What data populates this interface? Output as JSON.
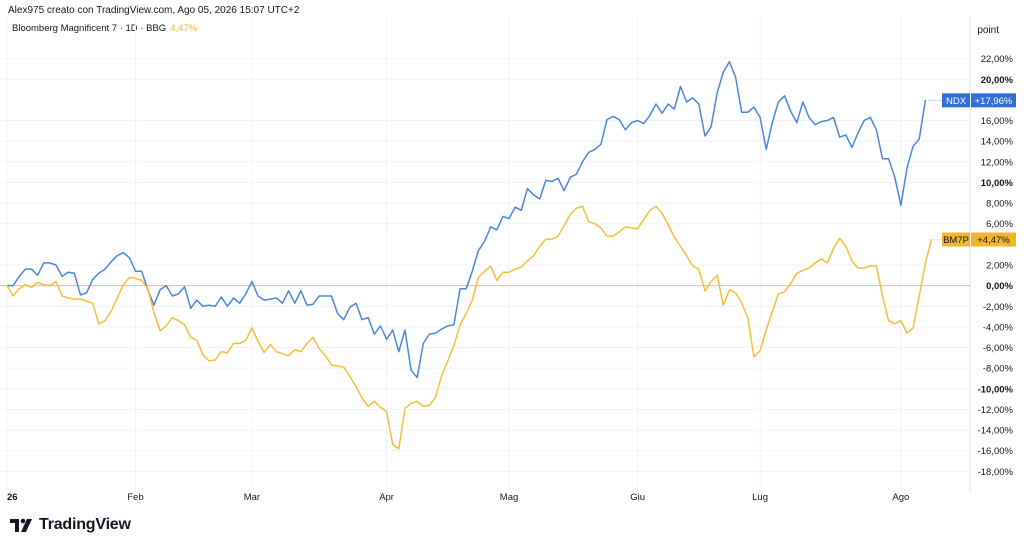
{
  "header": {
    "caption": "Alex975 creato con TradingView.com, Ago 05, 2026 15:07 UTC+2",
    "symbol": "Bloomberg Magnificent 7 · 1D · BBG",
    "change": "4,47%"
  },
  "brand": {
    "name": "TradingView",
    "icon": "tradingview-logo-icon"
  },
  "colors": {
    "ndx": "#4a87d9",
    "bm7p": "#f6bf3a",
    "badge_ndx": "#2f6fd6",
    "badge_bm7p": "#f2b62c",
    "zero_line": "#e8b7b7",
    "grid": "#f0f3fa"
  },
  "chart_data": {
    "type": "line",
    "unit": "point",
    "ylim": [
      -20,
      24
    ],
    "y_ticks": [
      {
        "value": 22,
        "label": "22,00%"
      },
      {
        "value": 20,
        "label": "20,00%"
      },
      {
        "value": 16,
        "label": "16,00%"
      },
      {
        "value": 14,
        "label": "14,00%"
      },
      {
        "value": 12,
        "label": "12,00%"
      },
      {
        "value": 10,
        "label": "10,00%"
      },
      {
        "value": 8,
        "label": "8,00%"
      },
      {
        "value": 6,
        "label": "6,00%"
      },
      {
        "value": 2,
        "label": "2,00%"
      },
      {
        "value": 0,
        "label": "0,00%"
      },
      {
        "value": -2,
        "label": "-2,00%"
      },
      {
        "value": -4,
        "label": "-4,00%"
      },
      {
        "value": -6,
        "label": "-6,00%"
      },
      {
        "value": -8,
        "label": "-8,00%"
      },
      {
        "value": -10,
        "label": "-10,00%"
      },
      {
        "value": -12,
        "label": "-12,00%"
      },
      {
        "value": -14,
        "label": "-14,00%"
      },
      {
        "value": -16,
        "label": "-16,00%"
      },
      {
        "value": -18,
        "label": "-18,00%"
      }
    ],
    "x_ticks": [
      {
        "index": 0,
        "label": "26"
      },
      {
        "index": 21,
        "label": "Feb"
      },
      {
        "index": 40,
        "label": "Mar"
      },
      {
        "index": 62,
        "label": "Apr"
      },
      {
        "index": 82,
        "label": "Mag"
      },
      {
        "index": 103,
        "label": "Giu"
      },
      {
        "index": 123,
        "label": "Lug"
      },
      {
        "index": 146,
        "label": "Ago"
      }
    ],
    "x_count": 148,
    "series": [
      {
        "name": "NDX",
        "badge": "+17,96%",
        "values": [
          0,
          0,
          0.9,
          1.6,
          1.6,
          1,
          2.2,
          2.2,
          2,
          0.9,
          1.3,
          1.2,
          -0.9,
          -0.7,
          0.6,
          1.2,
          1.6,
          2.3,
          2.9,
          3.2,
          2.7,
          1.4,
          1.4,
          -0.4,
          -1.9,
          -0.4,
          0,
          -1,
          -0.8,
          -0.1,
          -2.2,
          -1.4,
          -2,
          -1.9,
          -2,
          -1.1,
          -2,
          -1.2,
          -1.7,
          -0.8,
          0.4,
          -1,
          -1.4,
          -1.3,
          -1.2,
          -1.7,
          -0.5,
          -1.7,
          -0.5,
          -1.9,
          -1.8,
          -1,
          -1,
          -1,
          -2.7,
          -3.3,
          -2.1,
          -1.7,
          -3.3,
          -3.1,
          -4.7,
          -3.9,
          -5.2,
          -4.3,
          -6.4,
          -4.3,
          -8.2,
          -8.9,
          -5.6,
          -4.7,
          -4.6,
          -4.2,
          -3.9,
          -3.8,
          -0.3,
          -0.3,
          1.4,
          3.4,
          4.3,
          5.7,
          5.4,
          6.7,
          6.5,
          7.6,
          7.3,
          9.4,
          8.8,
          8.4,
          10.2,
          10.1,
          10.4,
          9.2,
          10.5,
          10.8,
          12,
          12.9,
          13.2,
          13.7,
          16.1,
          16.4,
          16.1,
          15.1,
          15.8,
          16,
          15.7,
          16.5,
          17.6,
          16.7,
          17.6,
          17.1,
          19.3,
          17.8,
          18.2,
          17.6,
          14.5,
          15.4,
          18.7,
          20.7,
          21.7,
          20.2,
          16.8,
          16.8,
          17.3,
          16.3,
          13.2,
          15.8,
          17.8,
          18.4,
          16.9,
          15.8,
          17.8,
          16.3,
          15.6,
          15.9,
          16,
          16.3,
          14.4,
          14.6,
          13.4,
          14.8,
          16,
          16.3,
          15.1,
          12.3,
          12.3,
          10.5,
          7.8,
          11.4,
          13.5,
          14.2,
          17.96
        ]
      },
      {
        "name": "BM7P",
        "badge": "+4,47%",
        "values": [
          0,
          -1,
          -0.3,
          0.1,
          -0.2,
          0.3,
          0.1,
          0,
          0.4,
          -1,
          -1.2,
          -1.3,
          -1.3,
          -1.5,
          -1.7,
          -3.7,
          -3.4,
          -2.5,
          -1.2,
          0.1,
          0.8,
          0.7,
          0.5,
          -0.3,
          -2.6,
          -4.4,
          -3.9,
          -3.1,
          -3.4,
          -3.8,
          -5,
          -5.3,
          -6.7,
          -7.3,
          -7.2,
          -6.4,
          -6.5,
          -5.6,
          -5.6,
          -5.3,
          -4.1,
          -5.4,
          -6.5,
          -5.7,
          -6.4,
          -6.6,
          -6.8,
          -6.2,
          -6.4,
          -5.6,
          -5,
          -6.1,
          -6.8,
          -7.7,
          -7.8,
          -7.9,
          -8.8,
          -9.8,
          -10.9,
          -11.7,
          -11.2,
          -11.8,
          -12.2,
          -15.4,
          -15.8,
          -11.9,
          -11.4,
          -11.2,
          -11.7,
          -11.6,
          -10.8,
          -8.7,
          -7.3,
          -5.8,
          -3.8,
          -2.7,
          -1.4,
          0.8,
          1.4,
          1.9,
          0.5,
          1.3,
          1.3,
          1.6,
          1.8,
          2.4,
          2.9,
          3.8,
          4.5,
          4.5,
          4.8,
          5.8,
          6.9,
          7.5,
          7.7,
          6.2,
          6,
          5.6,
          4.8,
          4.8,
          5.2,
          5.7,
          5.6,
          5.5,
          6.4,
          7.3,
          7.7,
          7,
          5.9,
          4.7,
          3.8,
          2.9,
          1.9,
          1.6,
          -0.5,
          0.4,
          1,
          -1.9,
          -0.4,
          -0.7,
          -1.7,
          -3.1,
          -6.9,
          -6.3,
          -4.3,
          -2.5,
          -0.8,
          -0.6,
          0.2,
          1.2,
          1.5,
          1.7,
          2.2,
          2.6,
          2.2,
          3.6,
          4.6,
          3.8,
          2.4,
          1.7,
          1.7,
          1.9,
          1.9,
          -1,
          -3.4,
          -3.7,
          -3.4,
          -4.6,
          -4.1,
          -1,
          2.2,
          4.47
        ]
      }
    ]
  }
}
